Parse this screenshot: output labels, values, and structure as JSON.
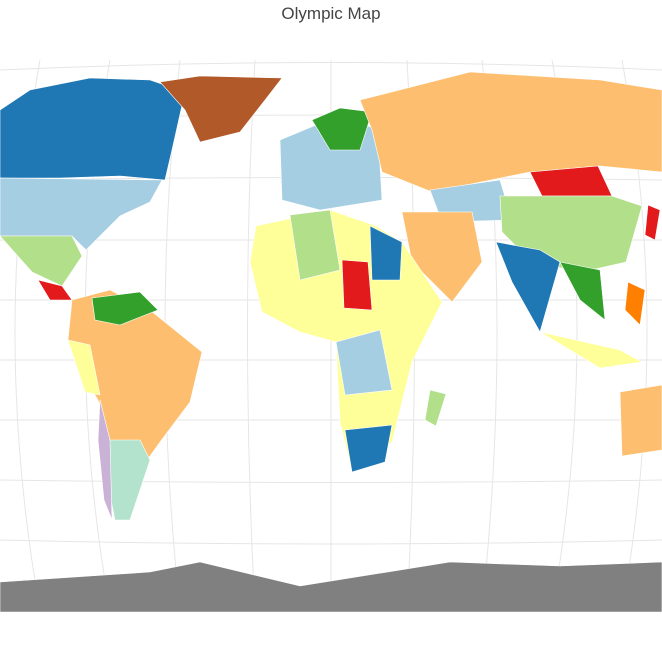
{
  "title": "Olympic Map",
  "colors": {
    "dark_blue": "#1f78b4",
    "light_blue": "#a6cee3",
    "light_green": "#b2df8a",
    "green": "#33a02c",
    "pink": "#fb9a99",
    "red": "#e31a1c",
    "light_orange": "#fdbf6f",
    "orange": "#ff7f00",
    "lavender": "#cab2d6",
    "purple": "#6a3d9a",
    "yellow": "#ffff99",
    "brown": "#b15928",
    "mint": "#b3e2cd",
    "no_data": "#808080"
  }
}
